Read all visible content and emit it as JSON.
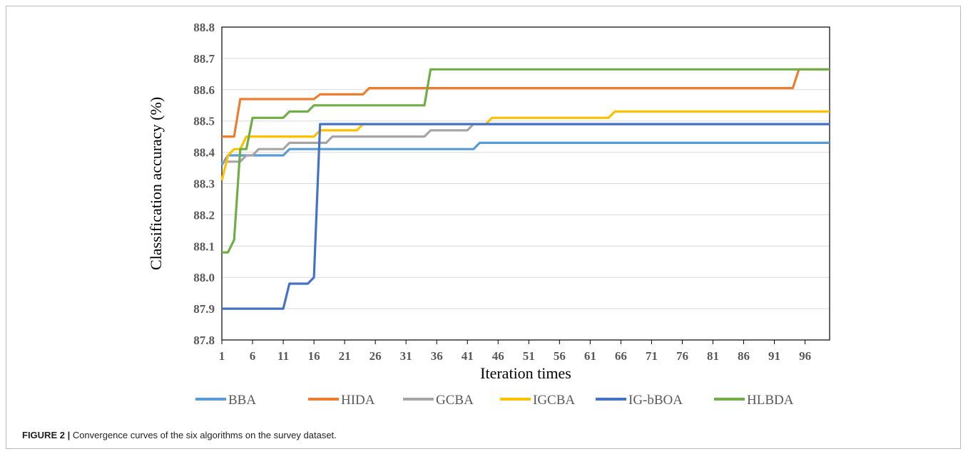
{
  "chart_data": {
    "type": "line",
    "xlabel": "Iteration times",
    "ylabel": "Classification accuracy (%)",
    "xlim": [
      1,
      100
    ],
    "ylim": [
      87.8,
      88.8
    ],
    "x_ticks": [
      "1",
      "6",
      "11",
      "16",
      "21",
      "26",
      "31",
      "36",
      "41",
      "46",
      "51",
      "56",
      "61",
      "66",
      "71",
      "76",
      "81",
      "86",
      "91",
      "96"
    ],
    "y_ticks": [
      "87.8",
      "87.9",
      "88.0",
      "88.1",
      "88.2",
      "88.3",
      "88.4",
      "88.5",
      "88.6",
      "88.7",
      "88.8"
    ],
    "grid": "horizontal",
    "legend_position": "bottom",
    "series": [
      {
        "name": "BBA",
        "color": "#5b9bd5",
        "points": [
          [
            1,
            88.36
          ],
          [
            2,
            88.39
          ],
          [
            11,
            88.39
          ],
          [
            12,
            88.41
          ],
          [
            42,
            88.41
          ],
          [
            43,
            88.43
          ],
          [
            100,
            88.43
          ]
        ]
      },
      {
        "name": "HIDA",
        "color": "#ed7d31",
        "points": [
          [
            1,
            88.45
          ],
          [
            3,
            88.45
          ],
          [
            4,
            88.57
          ],
          [
            16,
            88.57
          ],
          [
            17,
            88.585
          ],
          [
            24,
            88.585
          ],
          [
            25,
            88.605
          ],
          [
            94,
            88.605
          ],
          [
            95,
            88.665
          ],
          [
            100,
            88.665
          ]
        ]
      },
      {
        "name": "GCBA",
        "color": "#a5a5a5",
        "points": [
          [
            1,
            88.37
          ],
          [
            4,
            88.37
          ],
          [
            5,
            88.39
          ],
          [
            6,
            88.39
          ],
          [
            7,
            88.41
          ],
          [
            11,
            88.41
          ],
          [
            12,
            88.43
          ],
          [
            18,
            88.43
          ],
          [
            19,
            88.45
          ],
          [
            34,
            88.45
          ],
          [
            35,
            88.47
          ],
          [
            41,
            88.47
          ],
          [
            42,
            88.49
          ],
          [
            100,
            88.49
          ]
        ]
      },
      {
        "name": "IGCBA",
        "color": "#ffc000",
        "points": [
          [
            1,
            88.31
          ],
          [
            2,
            88.39
          ],
          [
            3,
            88.41
          ],
          [
            4,
            88.41
          ],
          [
            5,
            88.45
          ],
          [
            16,
            88.45
          ],
          [
            17,
            88.47
          ],
          [
            23,
            88.47
          ],
          [
            24,
            88.49
          ],
          [
            44,
            88.49
          ],
          [
            45,
            88.51
          ],
          [
            64,
            88.51
          ],
          [
            65,
            88.53
          ],
          [
            100,
            88.53
          ]
        ]
      },
      {
        "name": "IG-bBOA",
        "color": "#4472c4",
        "points": [
          [
            1,
            87.9
          ],
          [
            11,
            87.9
          ],
          [
            12,
            87.98
          ],
          [
            15,
            87.98
          ],
          [
            16,
            88.0
          ],
          [
            17,
            88.49
          ],
          [
            100,
            88.49
          ]
        ]
      },
      {
        "name": "HLBDA",
        "color": "#70ad47",
        "points": [
          [
            1,
            88.08
          ],
          [
            2,
            88.08
          ],
          [
            3,
            88.12
          ],
          [
            4,
            88.41
          ],
          [
            5,
            88.41
          ],
          [
            6,
            88.51
          ],
          [
            11,
            88.51
          ],
          [
            12,
            88.53
          ],
          [
            15,
            88.53
          ],
          [
            16,
            88.55
          ],
          [
            34,
            88.55
          ],
          [
            35,
            88.665
          ],
          [
            100,
            88.665
          ]
        ]
      }
    ]
  },
  "caption": {
    "label": "FIGURE 2 |",
    "text": " Convergence curves of the six algorithms on the survey dataset."
  }
}
